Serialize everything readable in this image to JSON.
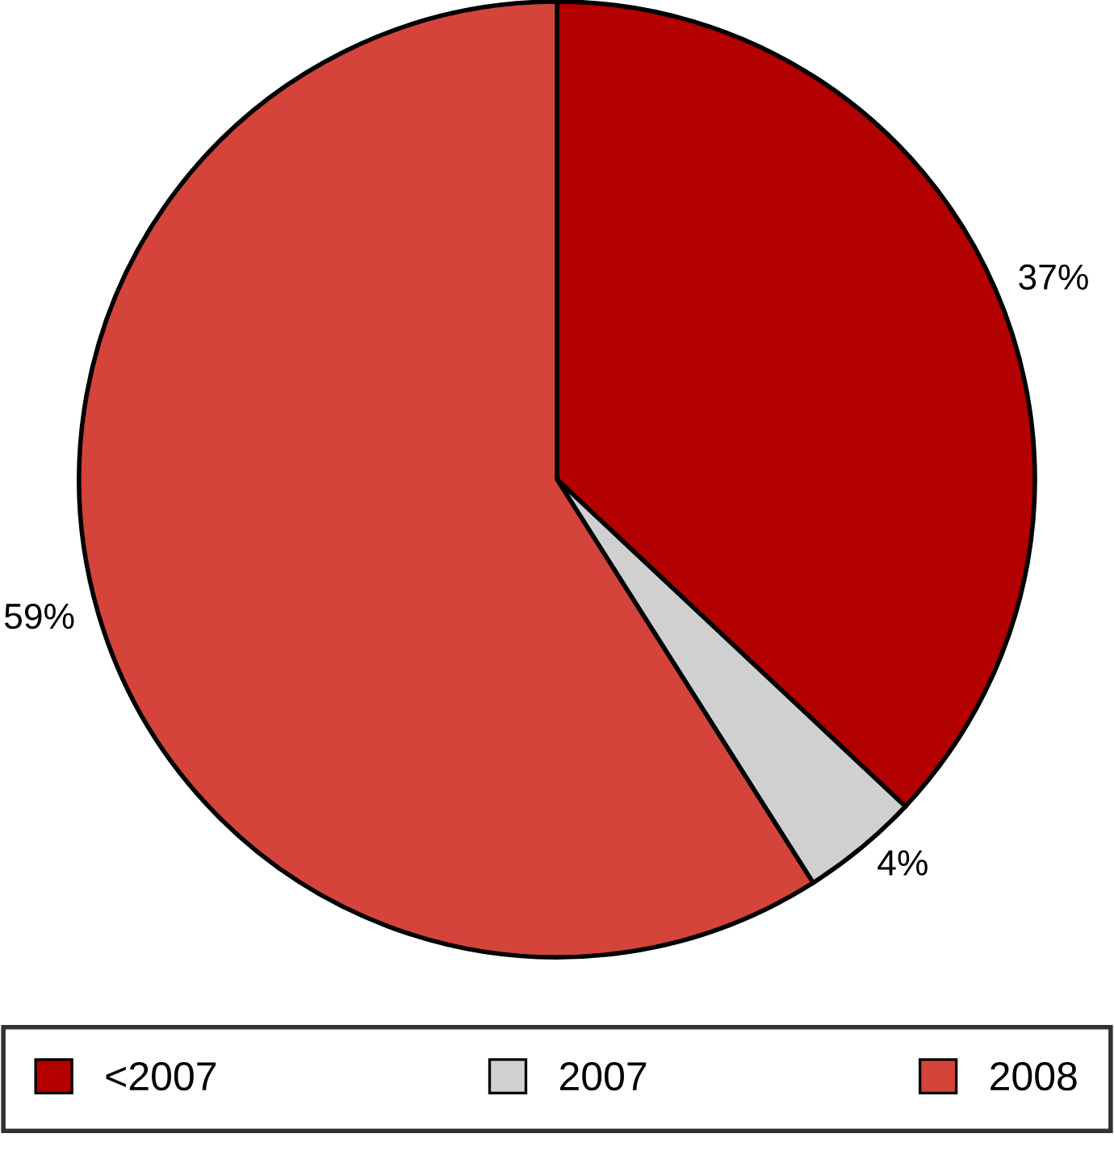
{
  "chart_data": {
    "type": "pie",
    "categories": [
      "<2007",
      "2007",
      "2008"
    ],
    "values": [
      37,
      4,
      59
    ],
    "colors": [
      "#b30000",
      "#d0d0d0",
      "#d5443b"
    ],
    "value_labels": [
      "37%",
      "4%",
      "59%"
    ],
    "legend": "bottom"
  }
}
